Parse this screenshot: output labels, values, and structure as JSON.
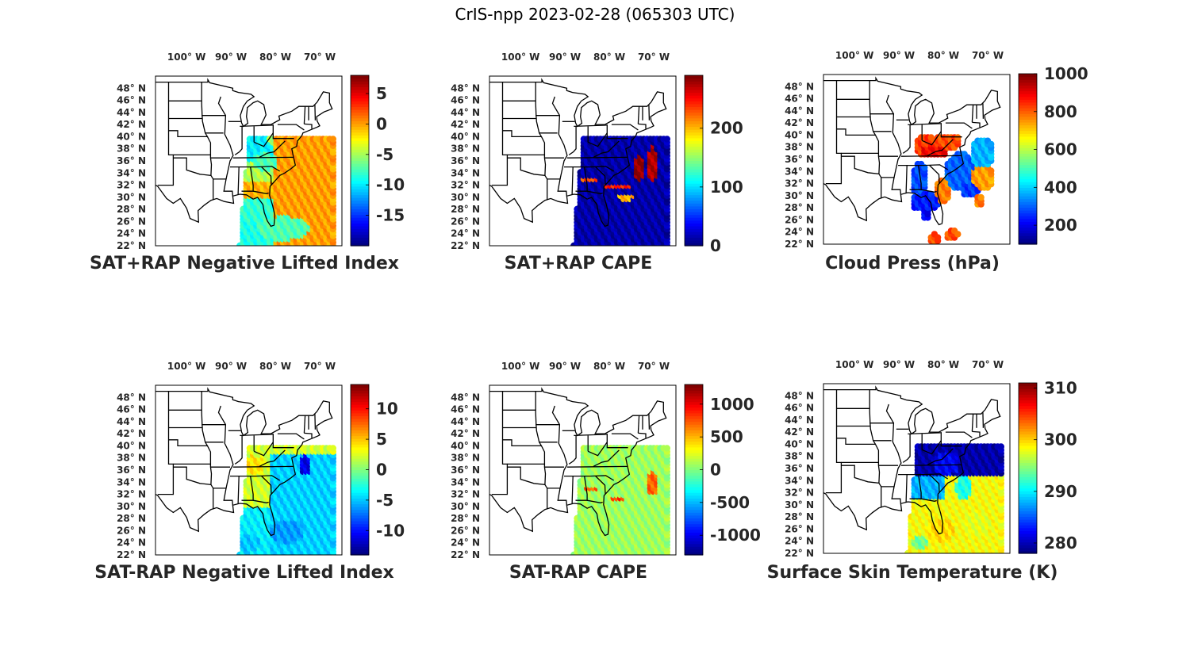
{
  "figure": {
    "title": "CrIS-npp 2023-02-28 (065303 UTC)"
  },
  "chart_data": [
    {
      "type": "heatmap",
      "title": "SAT+RAP Negative Lifted Index",
      "lon_ticks": [
        "100° W",
        "90° W",
        "80° W",
        "70° W"
      ],
      "lat_ticks": [
        "48° N",
        "46° N",
        "44° N",
        "42° N",
        "40° N",
        "38° N",
        "36° N",
        "34° N",
        "32° N",
        "30° N",
        "28° N",
        "26° N",
        "24° N",
        "22° N"
      ],
      "colorbar": {
        "min": -20,
        "max": 8,
        "ticks": [
          5,
          0,
          -5,
          -10,
          -15
        ]
      },
      "swath": {
        "lon_west": -88,
        "lon_east": -67,
        "lat_south": 22,
        "lat_north": 40
      },
      "field_summary": [
        {
          "region": "ocean east",
          "value": 0
        },
        {
          "region": "land southeast",
          "value": -1
        },
        {
          "region": "ohio valley",
          "value": -8
        },
        {
          "region": "gulf south",
          "value": -10
        }
      ]
    },
    {
      "type": "heatmap",
      "title": "SAT+RAP CAPE",
      "lon_ticks": [
        "100° W",
        "90° W",
        "80° W",
        "70° W"
      ],
      "lat_ticks": [
        "48° N",
        "46° N",
        "44° N",
        "42° N",
        "40° N",
        "38° N",
        "36° N",
        "34° N",
        "32° N",
        "30° N",
        "28° N",
        "26° N",
        "24° N",
        "22° N"
      ],
      "colorbar": {
        "min": 0,
        "max": 290,
        "ticks": [
          200,
          100,
          0
        ]
      },
      "swath": {
        "lon_west": -88,
        "lon_east": -67,
        "lat_south": 22,
        "lat_north": 40
      },
      "field_summary": [
        {
          "region": "most of swath",
          "value": 5
        },
        {
          "region": "offshore streaks",
          "value": 270
        }
      ]
    },
    {
      "type": "heatmap",
      "title": "Cloud Press (hPa)",
      "lon_ticks": [
        "100° W",
        "90° W",
        "80° W",
        "70° W"
      ],
      "lat_ticks": [
        "48° N",
        "46° N",
        "44° N",
        "42° N",
        "40° N",
        "38° N",
        "36° N",
        "34° N",
        "32° N",
        "30° N",
        "28° N",
        "26° N",
        "24° N",
        "22° N"
      ],
      "colorbar": {
        "min": 100,
        "max": 1000,
        "ticks": [
          1000,
          800,
          600,
          400,
          200
        ]
      },
      "swath": {
        "lon_west": -88,
        "lon_east": -67,
        "lat_south": 22,
        "lat_north": 40
      },
      "field_summary": [
        {
          "region": "appalachia",
          "value": 850
        },
        {
          "region": "gulf coast",
          "value": 250
        },
        {
          "region": "atlantic",
          "value": 300
        }
      ]
    },
    {
      "type": "heatmap",
      "title": "SAT-RAP Negative Lifted Index",
      "lon_ticks": [
        "100° W",
        "90° W",
        "80° W",
        "70° W"
      ],
      "lat_ticks": [
        "48° N",
        "46° N",
        "44° N",
        "42° N",
        "40° N",
        "38° N",
        "36° N",
        "34° N",
        "32° N",
        "30° N",
        "28° N",
        "26° N",
        "24° N",
        "22° N"
      ],
      "colorbar": {
        "min": -14,
        "max": 14,
        "ticks": [
          10,
          5,
          0,
          -5,
          -10
        ]
      },
      "swath": {
        "lon_west": -88,
        "lon_east": -67,
        "lat_south": 22,
        "lat_north": 40
      },
      "field_summary": [
        {
          "region": "land",
          "value": 1
        },
        {
          "region": "ocean",
          "value": -7
        }
      ]
    },
    {
      "type": "heatmap",
      "title": "SAT-RAP CAPE",
      "lon_ticks": [
        "100° W",
        "90° W",
        "80° W",
        "70° W"
      ],
      "lat_ticks": [
        "48° N",
        "46° N",
        "44° N",
        "42° N",
        "40° N",
        "38° N",
        "36° N",
        "34° N",
        "32° N",
        "30° N",
        "28° N",
        "26° N",
        "24° N",
        "22° N"
      ],
      "colorbar": {
        "min": -1300,
        "max": 1300,
        "ticks": [
          1000,
          500,
          0,
          -500,
          -1000
        ]
      },
      "swath": {
        "lon_west": -88,
        "lon_east": -67,
        "lat_south": 22,
        "lat_north": 40
      },
      "field_summary": [
        {
          "region": "most of swath",
          "value": 0
        },
        {
          "region": "offshore streaks",
          "value": 700
        }
      ]
    },
    {
      "type": "heatmap",
      "title": "Surface Skin Temperature (K)",
      "lon_ticks": [
        "100° W",
        "90° W",
        "80° W",
        "70° W"
      ],
      "lat_ticks": [
        "48° N",
        "46° N",
        "44° N",
        "42° N",
        "40° N",
        "38° N",
        "36° N",
        "34° N",
        "32° N",
        "30° N",
        "28° N",
        "26° N",
        "24° N",
        "22° N"
      ],
      "colorbar": {
        "min": 278,
        "max": 311,
        "ticks": [
          310,
          300,
          290,
          280
        ]
      },
      "swath": {
        "lon_west": -88,
        "lon_east": -67,
        "lat_south": 22,
        "lat_north": 40
      },
      "field_summary": [
        {
          "region": "northern land",
          "value": 279
        },
        {
          "region": "southeast land",
          "value": 287
        },
        {
          "region": "gulf and atlantic",
          "value": 298
        }
      ]
    }
  ]
}
